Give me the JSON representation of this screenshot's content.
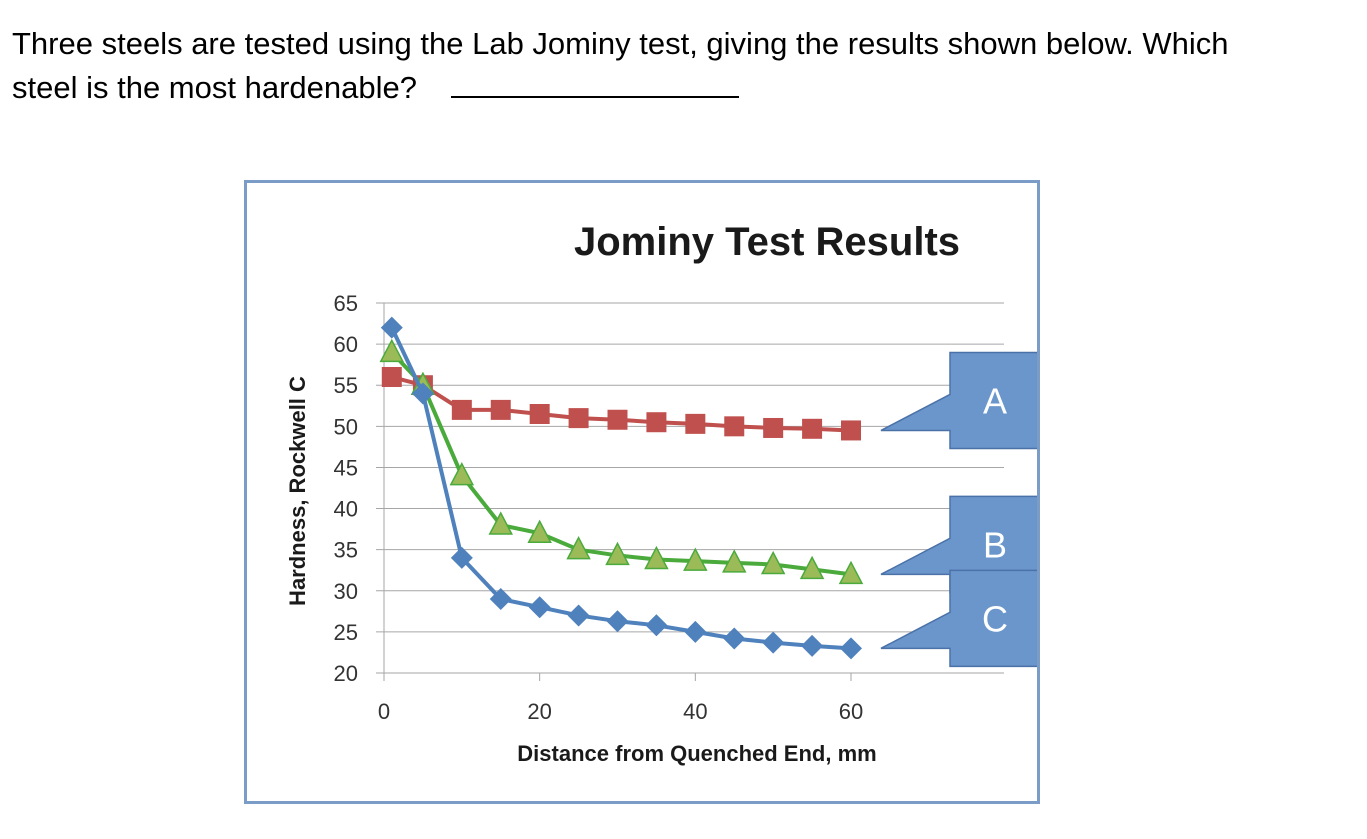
{
  "question": {
    "line1": "Three steels are tested using the Lab Jominy test, giving the results shown below.  Which",
    "line2": "steel is the most hardenable?"
  },
  "chart_data": {
    "type": "line",
    "title": "Jominy Test Results",
    "xlabel": "Distance from Quenched End, mm",
    "ylabel": "Hardness, Rockwell C",
    "xlim": [
      0,
      60
    ],
    "ylim": [
      20,
      65
    ],
    "x_ticks": [
      "0",
      "20",
      "40",
      "60"
    ],
    "y_ticks": [
      "20",
      "25",
      "30",
      "35",
      "40",
      "45",
      "50",
      "55",
      "60",
      "65"
    ],
    "grid": "horizontal",
    "series": [
      {
        "marker": "square",
        "color": "#c0504d",
        "x": [
          1,
          5,
          10,
          15,
          20,
          25,
          30,
          35,
          40,
          45,
          50,
          55,
          60
        ],
        "y": [
          56,
          55,
          52,
          52,
          51.5,
          51,
          50.8,
          50.5,
          50.3,
          50,
          49.8,
          49.7,
          49.5
        ]
      },
      {
        "marker": "triangle",
        "color": "#4aaa3c",
        "marker_fill": "#9bbb59",
        "x": [
          1,
          5,
          10,
          15,
          20,
          25,
          30,
          35,
          40,
          45,
          50,
          55,
          60
        ],
        "y": [
          59,
          55,
          44,
          38,
          37,
          35,
          34.3,
          33.8,
          33.6,
          33.4,
          33.2,
          32.6,
          32
        ]
      },
      {
        "marker": "diamond",
        "color": "#4f81bd",
        "x": [
          1,
          5,
          10,
          15,
          20,
          25,
          30,
          35,
          40,
          45,
          50,
          55,
          60
        ],
        "y": [
          62,
          54,
          34,
          29,
          28,
          27,
          26.3,
          25.8,
          25,
          24.2,
          23.7,
          23.3,
          23
        ]
      }
    ],
    "callouts": [
      {
        "label": "A",
        "series_index": 0
      },
      {
        "label": "B",
        "series_index": 1
      },
      {
        "label": "C",
        "series_index": 2
      }
    ],
    "callout_color": "#6a96cc"
  }
}
